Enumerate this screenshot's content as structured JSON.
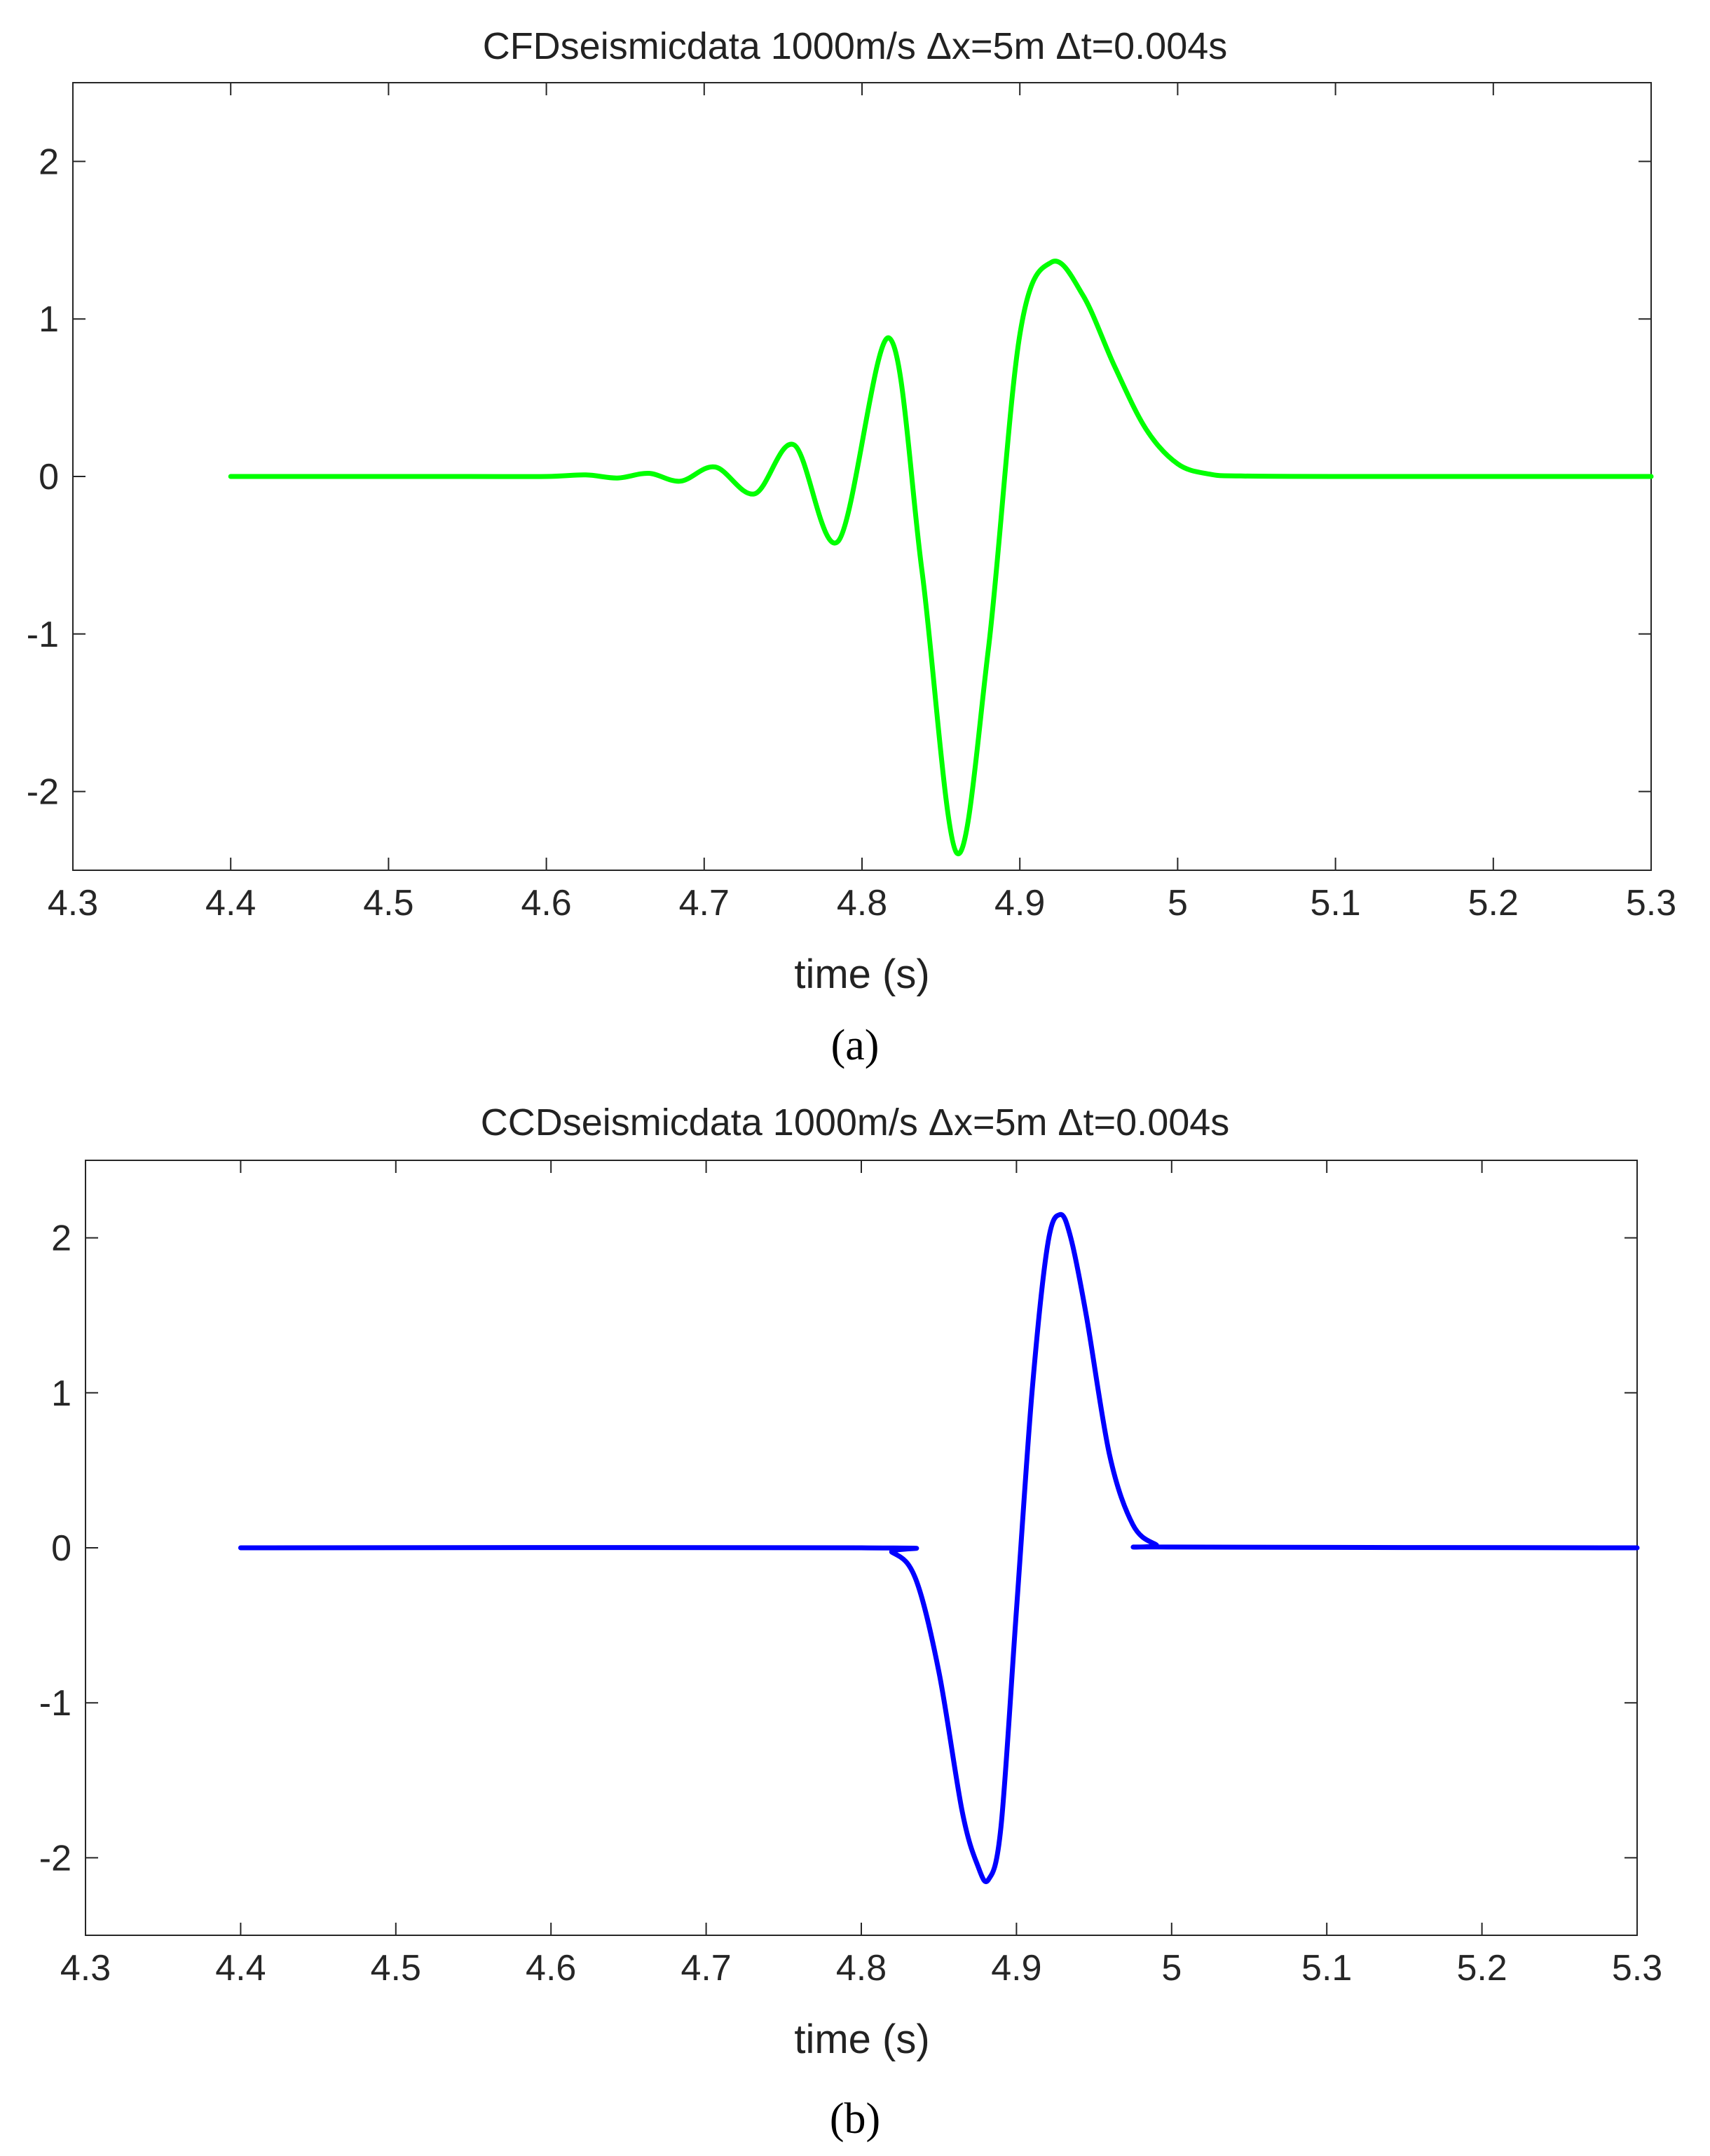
{
  "chart_data": [
    {
      "type": "line",
      "panel_label": "(a)",
      "title": "CFDseismicdata 1000m/s Δx=5m Δt=0.004s",
      "xlabel": "time (s)",
      "ylabel": "",
      "xlim": [
        4.3,
        5.3
      ],
      "ylim": [
        -2.5,
        2.5
      ],
      "xticks": [
        "4.3",
        "4.4",
        "4.5",
        "4.6",
        "4.7",
        "4.8",
        "4.9",
        "5",
        "5.1",
        "5.2",
        "5.3"
      ],
      "yticks": [
        "-2",
        "-1",
        "0",
        "1",
        "2"
      ],
      "grid": false,
      "legend": "none",
      "color": "#00ff00",
      "series": [
        {
          "x": [
            4.4,
            4.55,
            4.6,
            4.625,
            4.645,
            4.665,
            4.685,
            4.707,
            4.732,
            4.757,
            4.785,
            4.817,
            4.838,
            4.86,
            4.88,
            4.9,
            4.92,
            4.94,
            4.96,
            4.98,
            5.0,
            5.02,
            5.04,
            5.1,
            5.3
          ],
          "y": [
            0,
            0,
            0,
            0.01,
            -0.01,
            0.02,
            -0.03,
            0.06,
            -0.11,
            0.2,
            -0.41,
            0.88,
            -0.6,
            -2.39,
            -1.1,
            0.9,
            1.36,
            1.15,
            0.7,
            0.3,
            0.08,
            0.015,
            0.003,
            0,
            0
          ]
        }
      ]
    },
    {
      "type": "line",
      "panel_label": "(b)",
      "title": "CCDseismicdata 1000m/s Δx=5m Δt=0.004s",
      "xlabel": "time (s)",
      "ylabel": "",
      "xlim": [
        4.3,
        5.3
      ],
      "ylim": [
        -2.5,
        2.5
      ],
      "xticks": [
        "4.3",
        "4.4",
        "4.5",
        "4.6",
        "4.7",
        "4.8",
        "4.9",
        "5",
        "5.1",
        "5.2",
        "5.3"
      ],
      "yticks": [
        "-2",
        "-1",
        "0",
        "1",
        "2"
      ],
      "grid": false,
      "legend": "none",
      "color": "#0000ff",
      "series": [
        {
          "x": [
            4.4,
            4.8,
            4.82,
            4.835,
            4.85,
            4.865,
            4.875,
            4.882,
            4.89,
            4.9,
            4.91,
            4.92,
            4.928,
            4.935,
            4.945,
            4.96,
            4.975,
            4.99,
            5.0,
            5.3
          ],
          "y": [
            0,
            0,
            -0.03,
            -0.2,
            -0.8,
            -1.7,
            -2.05,
            -2.14,
            -1.8,
            -0.4,
            1.0,
            1.95,
            2.15,
            2.0,
            1.5,
            0.6,
            0.15,
            0.02,
            0.005,
            0
          ]
        }
      ]
    }
  ]
}
